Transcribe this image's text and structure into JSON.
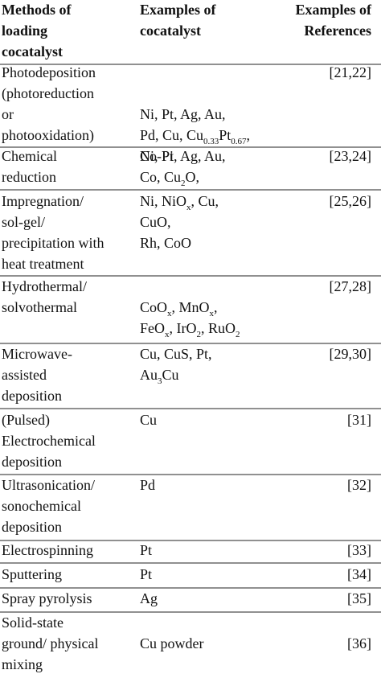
{
  "table": {
    "header": [
      [
        "Methods of",
        "loading",
        "cocatalyst"
      ],
      [
        "Examples of",
        "cocatalyst"
      ],
      [
        "Examples of",
        "References"
      ]
    ],
    "rows": [
      {
        "method": [
          "Photodeposition",
          "(photoreduction",
          "or",
          "photooxidation)"
        ],
        "cocatalyst": [
          [
            "Ni, Pt, Ag, Au,"
          ],
          [
            "Pd, Cu, Cu",
            {
              "sub": "0.33"
            },
            "Pt",
            {
              "sub": "0.67"
            },
            ","
          ],
          [
            "Co-Pi"
          ]
        ],
        "reference": "[21,22]"
      },
      {
        "method": [
          "Chemical",
          "reduction"
        ],
        "cocatalyst": [
          [
            "Ni, Pt, Ag, Au,"
          ],
          [
            "Co, Cu",
            {
              "sub": "2"
            },
            "O,"
          ]
        ],
        "reference": "[23,24]"
      },
      {
        "method": [
          "Impregnation/",
          "sol-gel/",
          "precipitation with",
          "heat treatment"
        ],
        "cocatalyst": [
          [
            "Ni, NiO",
            {
              "sub": "x"
            },
            ", Cu,"
          ],
          [
            "CuO,"
          ],
          [
            "Rh, CoO"
          ]
        ],
        "reference": "[25,26]"
      },
      {
        "method": [
          "Hydrothermal/",
          "solvothermal"
        ],
        "cocatalyst": [
          [
            "CoO",
            {
              "sub": "x"
            },
            ", MnO",
            {
              "sub": "x"
            },
            ","
          ],
          [
            "FeO",
            {
              "sub": "x"
            },
            ", IrO",
            {
              "sub": "2"
            },
            ", RuO",
            {
              "sub": "2"
            }
          ]
        ],
        "reference": "[27,28]"
      },
      {
        "method": [
          "Microwave-",
          "assisted",
          "deposition"
        ],
        "cocatalyst": [
          [
            "Cu, CuS, Pt,"
          ],
          [
            "Au",
            {
              "sub": "3"
            },
            "Cu"
          ]
        ],
        "reference": "[29,30]"
      },
      {
        "method": [
          "(Pulsed)",
          "Electrochemical",
          "deposition"
        ],
        "cocatalyst": [
          [
            "Cu"
          ]
        ],
        "reference": "[31]"
      },
      {
        "method": [
          "Ultrasonication/",
          "sonochemical",
          "deposition"
        ],
        "cocatalyst": [
          [
            "Pd"
          ]
        ],
        "reference": "[32]"
      },
      {
        "method": [
          "Electrospinning"
        ],
        "cocatalyst": [
          [
            "Pt"
          ]
        ],
        "reference": "[33]"
      },
      {
        "method": [
          "Sputtering"
        ],
        "cocatalyst": [
          [
            "Pt"
          ]
        ],
        "reference": "[34]"
      },
      {
        "method": [
          "Spray pyrolysis"
        ],
        "cocatalyst": [
          [
            "Ag"
          ]
        ],
        "reference": "[35]"
      },
      {
        "method": [
          "Solid-state",
          "ground/ physical",
          "mixing"
        ],
        "cocatalyst": [
          [
            "Cu powder"
          ]
        ],
        "reference": "[36]"
      }
    ]
  }
}
